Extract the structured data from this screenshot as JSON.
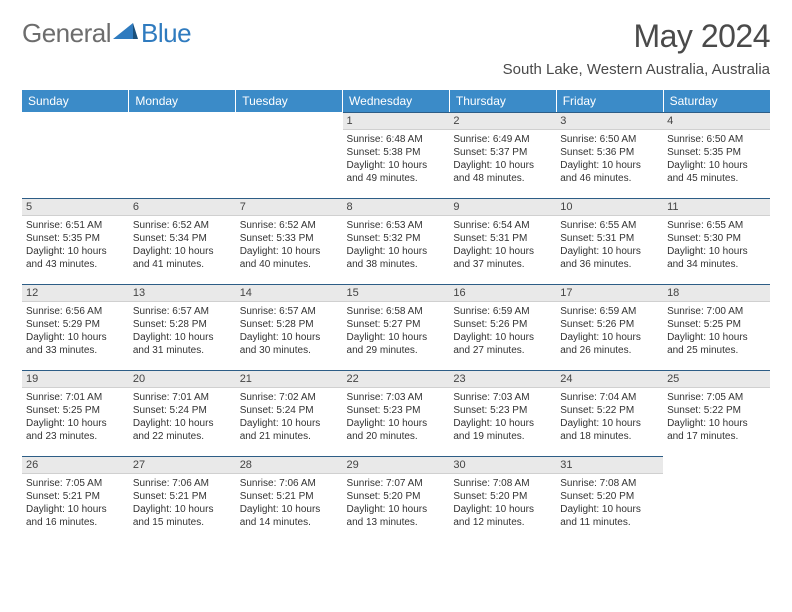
{
  "brand": {
    "part1": "General",
    "part2": "Blue"
  },
  "title": "May 2024",
  "location": "South Lake, Western Australia, Australia",
  "colors": {
    "header_bg": "#3b8bc8",
    "header_text": "#ffffff",
    "daynum_bg": "#e9e9e9",
    "daynum_border_top": "#2d5d86",
    "logo_blue": "#2f7bbf",
    "logo_gray": "#6d6d6d",
    "body_text": "#333333"
  },
  "day_names": [
    "Sunday",
    "Monday",
    "Tuesday",
    "Wednesday",
    "Thursday",
    "Friday",
    "Saturday"
  ],
  "weeks": [
    [
      null,
      null,
      null,
      {
        "n": "1",
        "sr": "Sunrise: 6:48 AM",
        "ss": "Sunset: 5:38 PM",
        "dl": "Daylight: 10 hours and 49 minutes."
      },
      {
        "n": "2",
        "sr": "Sunrise: 6:49 AM",
        "ss": "Sunset: 5:37 PM",
        "dl": "Daylight: 10 hours and 48 minutes."
      },
      {
        "n": "3",
        "sr": "Sunrise: 6:50 AM",
        "ss": "Sunset: 5:36 PM",
        "dl": "Daylight: 10 hours and 46 minutes."
      },
      {
        "n": "4",
        "sr": "Sunrise: 6:50 AM",
        "ss": "Sunset: 5:35 PM",
        "dl": "Daylight: 10 hours and 45 minutes."
      }
    ],
    [
      {
        "n": "5",
        "sr": "Sunrise: 6:51 AM",
        "ss": "Sunset: 5:35 PM",
        "dl": "Daylight: 10 hours and 43 minutes."
      },
      {
        "n": "6",
        "sr": "Sunrise: 6:52 AM",
        "ss": "Sunset: 5:34 PM",
        "dl": "Daylight: 10 hours and 41 minutes."
      },
      {
        "n": "7",
        "sr": "Sunrise: 6:52 AM",
        "ss": "Sunset: 5:33 PM",
        "dl": "Daylight: 10 hours and 40 minutes."
      },
      {
        "n": "8",
        "sr": "Sunrise: 6:53 AM",
        "ss": "Sunset: 5:32 PM",
        "dl": "Daylight: 10 hours and 38 minutes."
      },
      {
        "n": "9",
        "sr": "Sunrise: 6:54 AM",
        "ss": "Sunset: 5:31 PM",
        "dl": "Daylight: 10 hours and 37 minutes."
      },
      {
        "n": "10",
        "sr": "Sunrise: 6:55 AM",
        "ss": "Sunset: 5:31 PM",
        "dl": "Daylight: 10 hours and 36 minutes."
      },
      {
        "n": "11",
        "sr": "Sunrise: 6:55 AM",
        "ss": "Sunset: 5:30 PM",
        "dl": "Daylight: 10 hours and 34 minutes."
      }
    ],
    [
      {
        "n": "12",
        "sr": "Sunrise: 6:56 AM",
        "ss": "Sunset: 5:29 PM",
        "dl": "Daylight: 10 hours and 33 minutes."
      },
      {
        "n": "13",
        "sr": "Sunrise: 6:57 AM",
        "ss": "Sunset: 5:28 PM",
        "dl": "Daylight: 10 hours and 31 minutes."
      },
      {
        "n": "14",
        "sr": "Sunrise: 6:57 AM",
        "ss": "Sunset: 5:28 PM",
        "dl": "Daylight: 10 hours and 30 minutes."
      },
      {
        "n": "15",
        "sr": "Sunrise: 6:58 AM",
        "ss": "Sunset: 5:27 PM",
        "dl": "Daylight: 10 hours and 29 minutes."
      },
      {
        "n": "16",
        "sr": "Sunrise: 6:59 AM",
        "ss": "Sunset: 5:26 PM",
        "dl": "Daylight: 10 hours and 27 minutes."
      },
      {
        "n": "17",
        "sr": "Sunrise: 6:59 AM",
        "ss": "Sunset: 5:26 PM",
        "dl": "Daylight: 10 hours and 26 minutes."
      },
      {
        "n": "18",
        "sr": "Sunrise: 7:00 AM",
        "ss": "Sunset: 5:25 PM",
        "dl": "Daylight: 10 hours and 25 minutes."
      }
    ],
    [
      {
        "n": "19",
        "sr": "Sunrise: 7:01 AM",
        "ss": "Sunset: 5:25 PM",
        "dl": "Daylight: 10 hours and 23 minutes."
      },
      {
        "n": "20",
        "sr": "Sunrise: 7:01 AM",
        "ss": "Sunset: 5:24 PM",
        "dl": "Daylight: 10 hours and 22 minutes."
      },
      {
        "n": "21",
        "sr": "Sunrise: 7:02 AM",
        "ss": "Sunset: 5:24 PM",
        "dl": "Daylight: 10 hours and 21 minutes."
      },
      {
        "n": "22",
        "sr": "Sunrise: 7:03 AM",
        "ss": "Sunset: 5:23 PM",
        "dl": "Daylight: 10 hours and 20 minutes."
      },
      {
        "n": "23",
        "sr": "Sunrise: 7:03 AM",
        "ss": "Sunset: 5:23 PM",
        "dl": "Daylight: 10 hours and 19 minutes."
      },
      {
        "n": "24",
        "sr": "Sunrise: 7:04 AM",
        "ss": "Sunset: 5:22 PM",
        "dl": "Daylight: 10 hours and 18 minutes."
      },
      {
        "n": "25",
        "sr": "Sunrise: 7:05 AM",
        "ss": "Sunset: 5:22 PM",
        "dl": "Daylight: 10 hours and 17 minutes."
      }
    ],
    [
      {
        "n": "26",
        "sr": "Sunrise: 7:05 AM",
        "ss": "Sunset: 5:21 PM",
        "dl": "Daylight: 10 hours and 16 minutes."
      },
      {
        "n": "27",
        "sr": "Sunrise: 7:06 AM",
        "ss": "Sunset: 5:21 PM",
        "dl": "Daylight: 10 hours and 15 minutes."
      },
      {
        "n": "28",
        "sr": "Sunrise: 7:06 AM",
        "ss": "Sunset: 5:21 PM",
        "dl": "Daylight: 10 hours and 14 minutes."
      },
      {
        "n": "29",
        "sr": "Sunrise: 7:07 AM",
        "ss": "Sunset: 5:20 PM",
        "dl": "Daylight: 10 hours and 13 minutes."
      },
      {
        "n": "30",
        "sr": "Sunrise: 7:08 AM",
        "ss": "Sunset: 5:20 PM",
        "dl": "Daylight: 10 hours and 12 minutes."
      },
      {
        "n": "31",
        "sr": "Sunrise: 7:08 AM",
        "ss": "Sunset: 5:20 PM",
        "dl": "Daylight: 10 hours and 11 minutes."
      },
      null
    ]
  ]
}
